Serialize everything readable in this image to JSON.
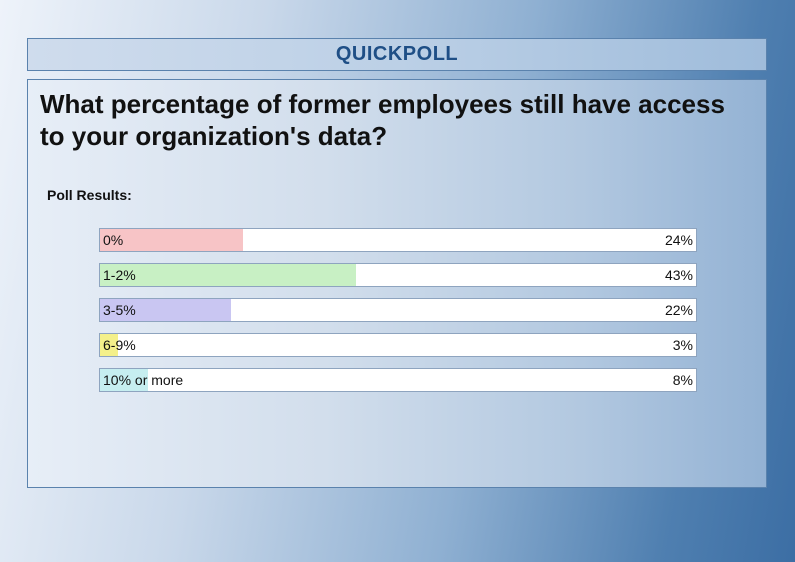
{
  "header": {
    "title": "QUICKPOLL"
  },
  "question": "What percentage of former employees still have access to your organization's data?",
  "results_label": "Poll Results:",
  "chart_data": {
    "type": "bar",
    "orientation": "horizontal",
    "categories": [
      "0%",
      "1-2%",
      "3-5%",
      "6-9%",
      "10% or more"
    ],
    "values": [
      24,
      43,
      22,
      3,
      8
    ],
    "value_labels": [
      "24%",
      "43%",
      "22%",
      "3%",
      "8%"
    ],
    "colors": [
      "#f7c4c6",
      "#c8f0c4",
      "#c9c6f2",
      "#f4f08a",
      "#c6eef0"
    ],
    "xlim": [
      0,
      100
    ]
  }
}
